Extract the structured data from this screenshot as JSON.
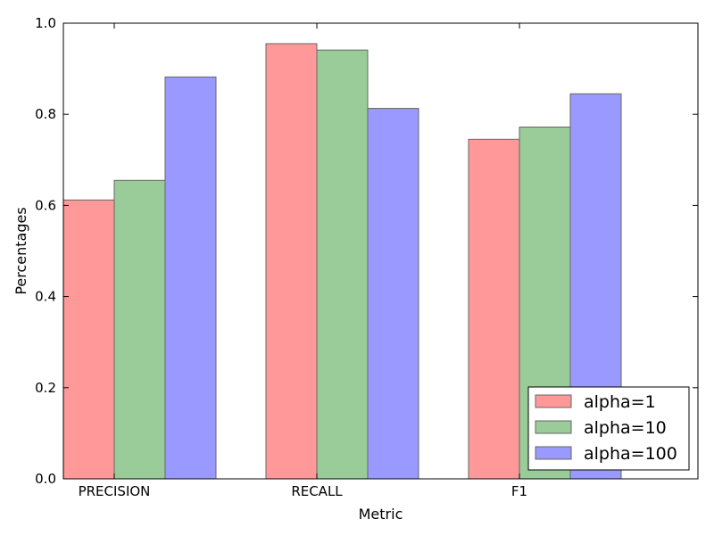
{
  "chart_data": {
    "type": "bar",
    "categories": [
      "PRECISION",
      "RECALL",
      "F1"
    ],
    "series": [
      {
        "name": "alpha=1",
        "color": "#ff9999",
        "values": [
          0.612,
          0.955,
          0.745
        ]
      },
      {
        "name": "alpha=10",
        "color": "#99cc99",
        "values": [
          0.655,
          0.941,
          0.772
        ]
      },
      {
        "name": "alpha=100",
        "color": "#9999ff",
        "values": [
          0.882,
          0.813,
          0.845
        ]
      }
    ],
    "xlabel": "Metric",
    "ylabel": "Percentages",
    "ylim": [
      0,
      1.0
    ],
    "yticks": [
      "0.0",
      "0.2",
      "0.4",
      "0.6",
      "0.8",
      "1.0"
    ],
    "legend_position": "lower-right",
    "grid": false
  }
}
